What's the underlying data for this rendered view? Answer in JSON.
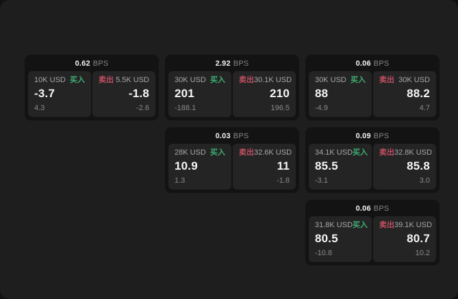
{
  "labels": {
    "buy": "买入",
    "sell": "卖出",
    "bps": "BPS"
  },
  "colors": {
    "buy_green": "#3fae73",
    "sell_red": "#c04f63",
    "surface": "#1d1e1d",
    "card_bg": "#131313",
    "panel_bg": "#242424"
  },
  "cards": [
    {
      "grid": {
        "row": 0,
        "col": 0
      },
      "bps": "0.62",
      "buy": {
        "amount": "10K USD",
        "value": "-3.7",
        "delta": "4.3"
      },
      "sell": {
        "amount": "5.5K USD",
        "value": "-1.8",
        "delta": "-2.6"
      }
    },
    {
      "grid": {
        "row": 0,
        "col": 1
      },
      "bps": "2.92",
      "buy": {
        "amount": "30K USD",
        "value": "201",
        "delta": "-188.1"
      },
      "sell": {
        "amount": "30.1K USD",
        "value": "210",
        "delta": "196.5"
      }
    },
    {
      "grid": {
        "row": 0,
        "col": 2
      },
      "bps": "0.06",
      "buy": {
        "amount": "30K USD",
        "value": "88",
        "delta": "-4.9"
      },
      "sell": {
        "amount": "30K USD",
        "value": "88.2",
        "delta": "4.7"
      }
    },
    {
      "grid": {
        "row": 1,
        "col": 1
      },
      "bps": "0.03",
      "buy": {
        "amount": "28K USD",
        "value": "10.9",
        "delta": "1.3"
      },
      "sell": {
        "amount": "32.6K USD",
        "value": "11",
        "delta": "-1.8"
      }
    },
    {
      "grid": {
        "row": 1,
        "col": 2
      },
      "bps": "0.09",
      "buy": {
        "amount": "34.1K USD",
        "value": "85.5",
        "delta": "-3.1"
      },
      "sell": {
        "amount": "32.8K USD",
        "value": "85.8",
        "delta": "3.0"
      }
    },
    {
      "grid": {
        "row": 2,
        "col": 2
      },
      "bps": "0.06",
      "buy": {
        "amount": "31.8K USD",
        "value": "80.5",
        "delta": "-10.8"
      },
      "sell": {
        "amount": "39.1K USD",
        "value": "80.7",
        "delta": "10.2"
      }
    }
  ]
}
